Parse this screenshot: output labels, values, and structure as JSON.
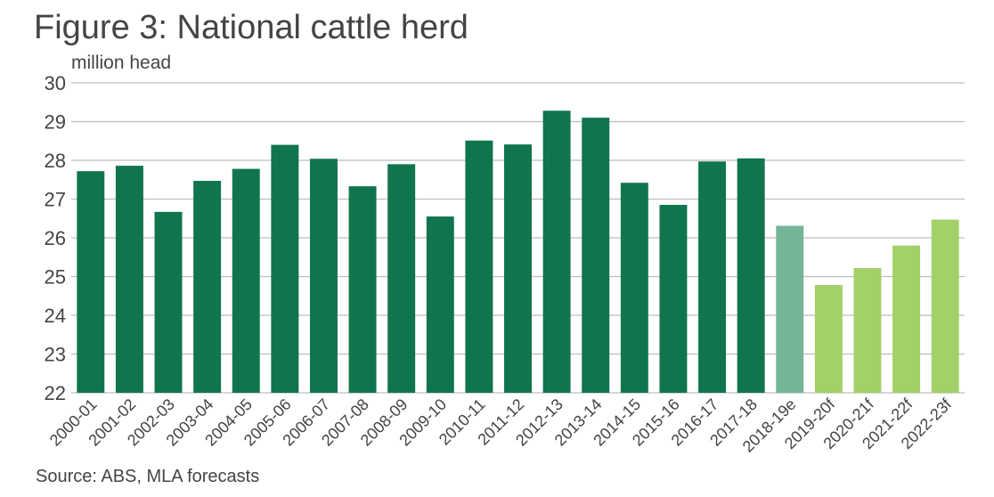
{
  "title": "Figure 3: National cattle herd",
  "source": "Source: ABS, MLA forecasts",
  "colors": {
    "actual": "#10754d",
    "estimate": "#74b598",
    "forecast": "#a3d068",
    "grid": "#bdbdbd",
    "text": "#444444"
  },
  "chart_data": {
    "type": "bar",
    "title": "Figure 3: National cattle herd",
    "xlabel": "",
    "ylabel": "million head",
    "ylim": [
      22,
      30
    ],
    "yticks": [
      22,
      23,
      24,
      25,
      26,
      27,
      28,
      29,
      30
    ],
    "grid": true,
    "categories": [
      "2000-01",
      "2001-02",
      "2002-03",
      "2003-04",
      "2004-05",
      "2005-06",
      "2006-07",
      "2007-08",
      "2008-09",
      "2009-10",
      "2010-11",
      "2011-12",
      "2012-13",
      "2013-14",
      "2014-15",
      "2015-16",
      "2016-17",
      "2017-18",
      "2018-19e",
      "2019-20f",
      "2020-21f",
      "2021-22f",
      "2022-23f"
    ],
    "values": [
      27.72,
      27.86,
      26.67,
      27.47,
      27.78,
      28.4,
      28.04,
      27.33,
      27.9,
      26.55,
      28.51,
      28.41,
      29.28,
      29.1,
      27.42,
      26.85,
      27.97,
      28.05,
      26.31,
      24.78,
      25.22,
      25.8,
      26.47
    ],
    "bar_kinds": [
      "actual",
      "actual",
      "actual",
      "actual",
      "actual",
      "actual",
      "actual",
      "actual",
      "actual",
      "actual",
      "actual",
      "actual",
      "actual",
      "actual",
      "actual",
      "actual",
      "actual",
      "actual",
      "estimate",
      "forecast",
      "forecast",
      "forecast",
      "forecast"
    ]
  }
}
